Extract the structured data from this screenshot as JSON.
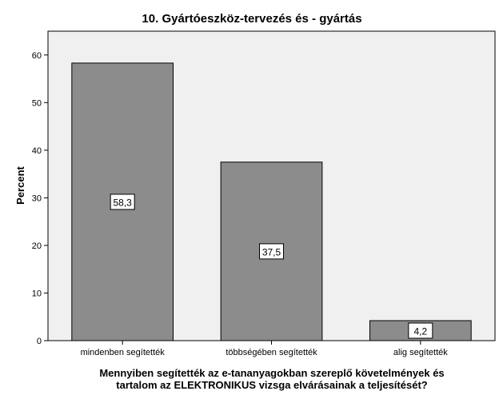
{
  "chart_data": {
    "type": "bar",
    "title": "10. Gyártóeszköz-tervezés és - gyártás",
    "xlabel": "Mennyiben segítették az e-tananyagokban szereplő követelmények és\ntartalom az ELEKTRONIKUS vizsga elvárásainak a teljesítését?",
    "ylabel": "Percent",
    "categories": [
      "mindenben segítették",
      "többségében segítették",
      "alig segítették"
    ],
    "values": [
      58.3,
      37.5,
      4.2
    ],
    "value_labels": [
      "58,3",
      "37,5",
      "4,2"
    ],
    "ylim": [
      0,
      65
    ],
    "yticks": [
      0,
      10,
      20,
      30,
      40,
      50,
      60
    ],
    "grid": false,
    "legend": "none",
    "colors": {
      "bar_fill": "#8c8c8c",
      "bar_stroke": "#000000",
      "plot_background": "#f0f0f0",
      "label_box": "#ffffff"
    }
  }
}
